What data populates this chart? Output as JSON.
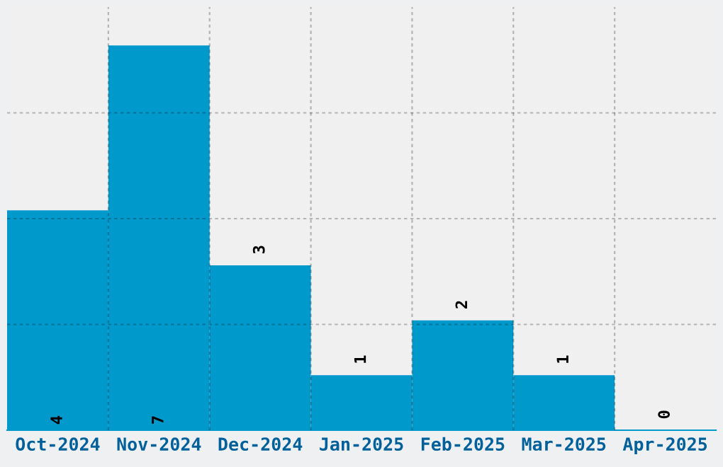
{
  "chart_data": {
    "type": "bar",
    "categories": [
      "Oct-2024",
      "Nov-2024",
      "Dec-2024",
      "Jan-2025",
      "Feb-2025",
      "Mar-2025",
      "Apr-2025"
    ],
    "values": [
      4,
      7,
      3,
      1,
      2,
      1,
      0
    ],
    "color": "#0099cc",
    "ylim": [
      0,
      7.7
    ],
    "yticks": [
      {
        "value": 1.925,
        "label": null
      },
      {
        "value": 3.85,
        "label": null
      },
      {
        "value": 5.775,
        "label": null
      }
    ],
    "tick_labels": "x",
    "data_labels": true,
    "grid": true
  }
}
